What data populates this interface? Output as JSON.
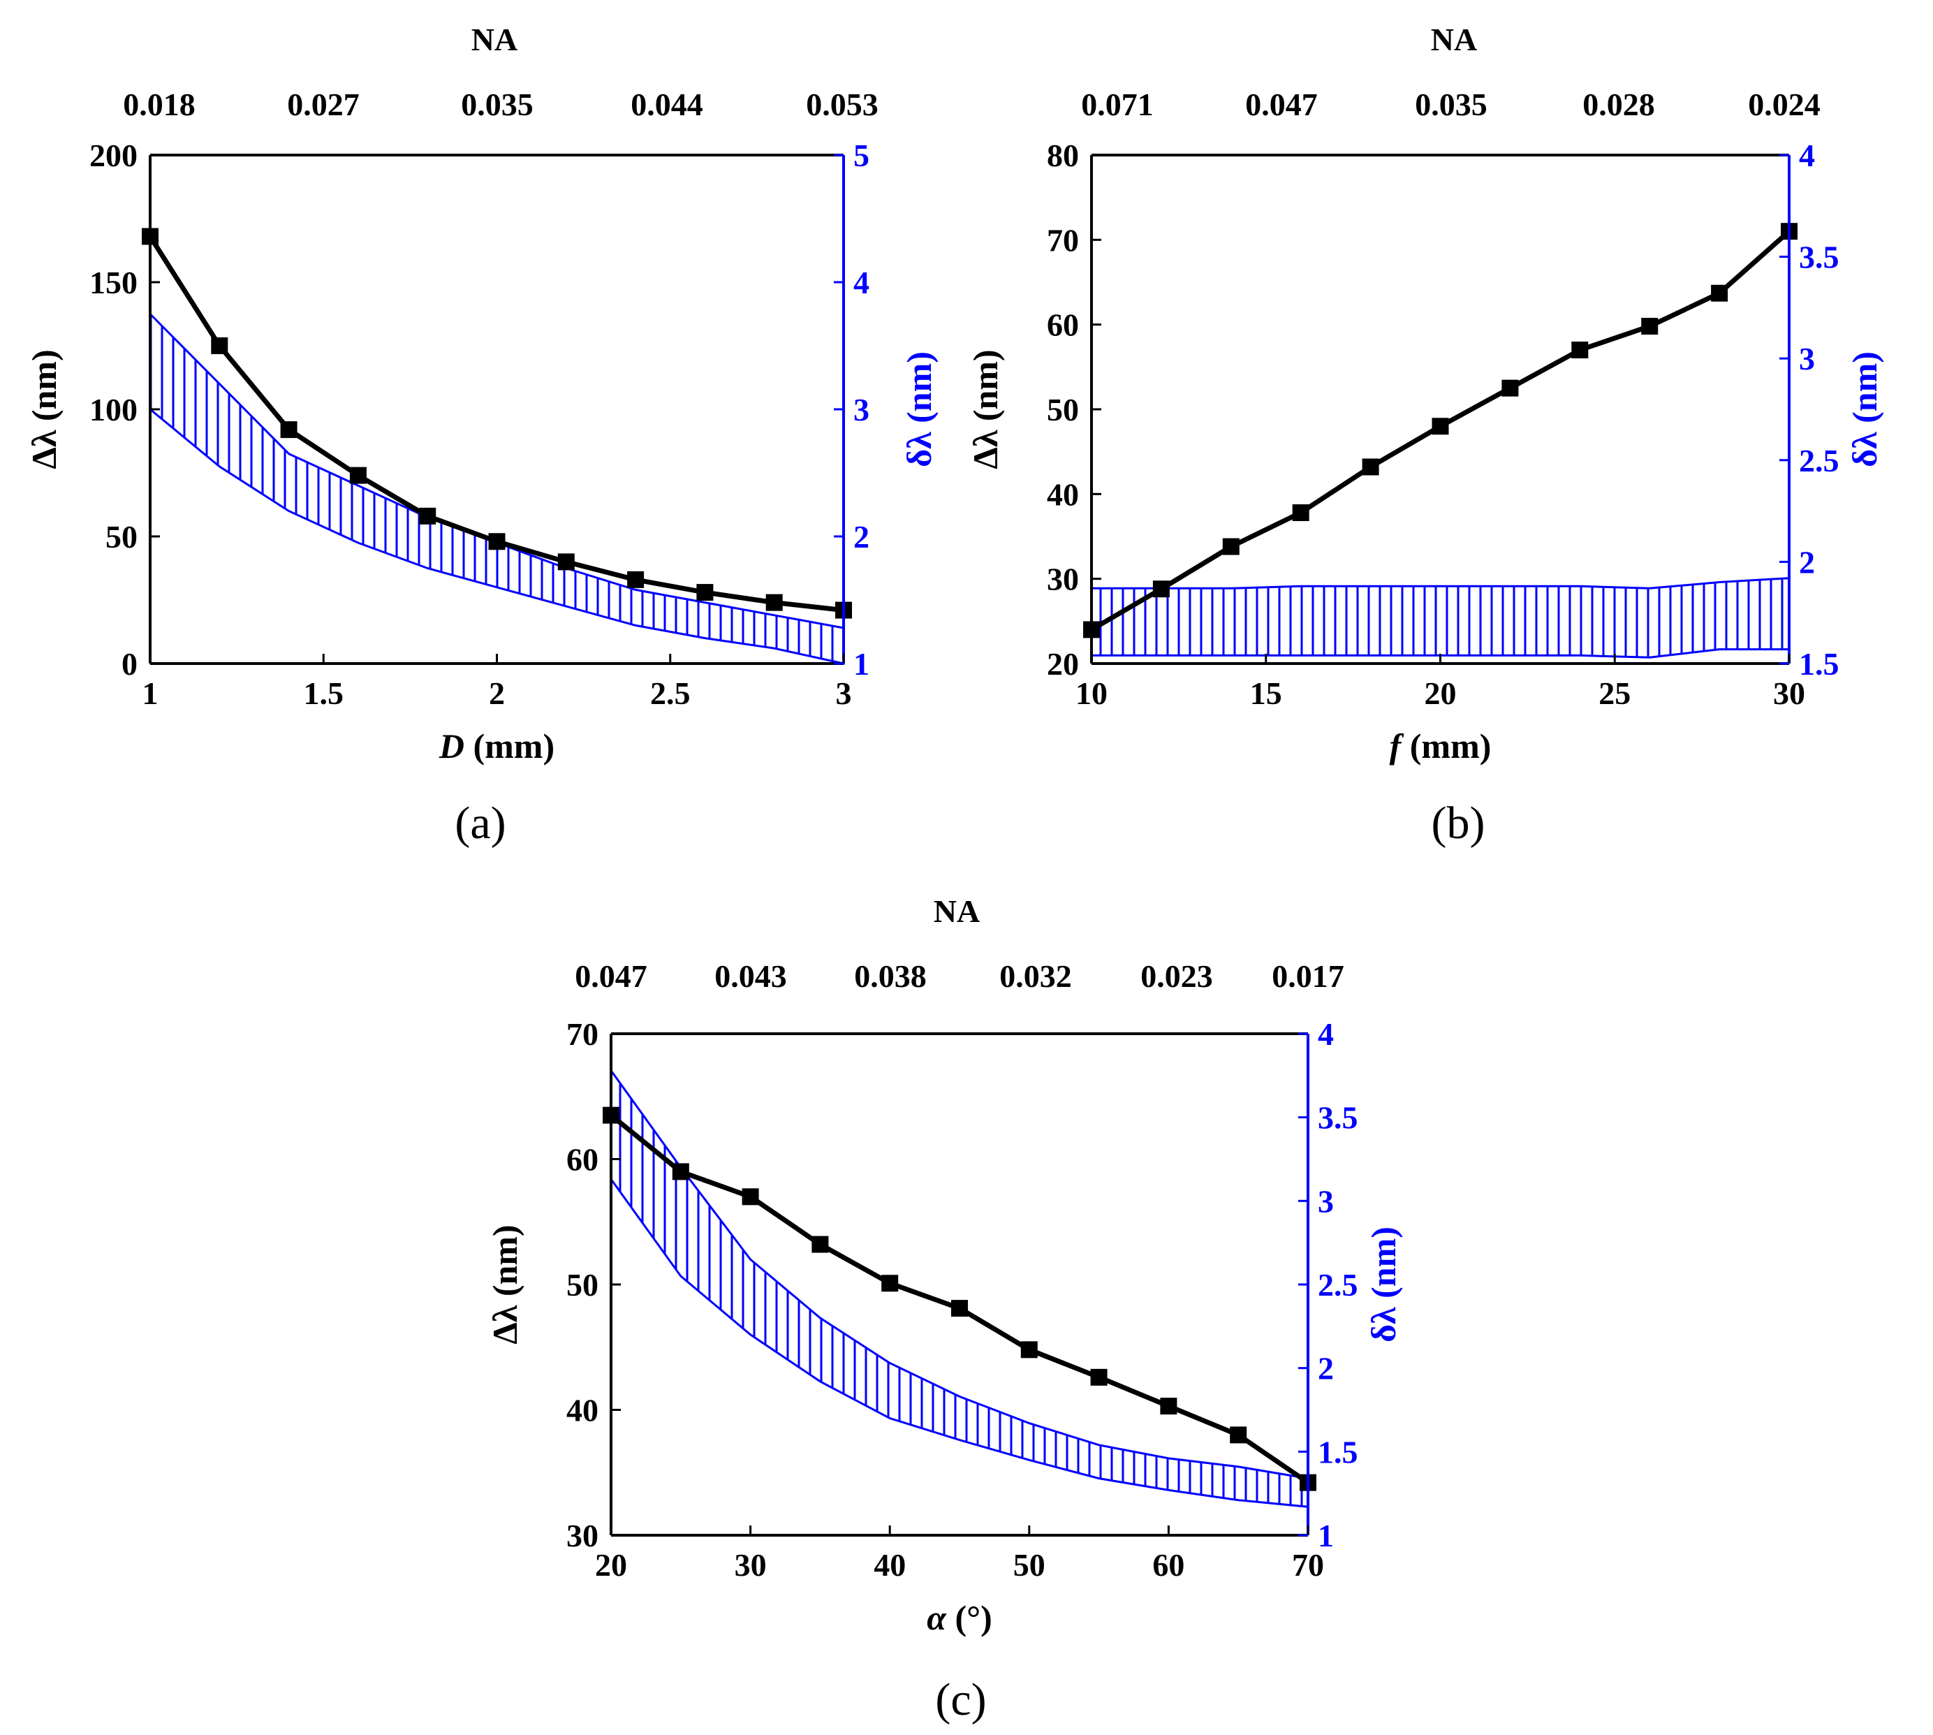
{
  "figure": {
    "panels": [
      "(a)",
      "(b)",
      "(c)"
    ]
  },
  "colors": {
    "primary": "#000000",
    "secondary": "#0000ff"
  },
  "chart_data": [
    {
      "id": "a",
      "type": "line",
      "panel_label": "(a)",
      "xlabel_italic": "D",
      "xlabel_rest": " (mm)",
      "ylabel": "Δλ (nm)",
      "y2label": "δλ (nm)",
      "top_axis_title": "NA",
      "top_ticks": [
        "0.018",
        "0.027",
        "0.035",
        "0.044",
        "0.053"
      ],
      "xlim": [
        1,
        3
      ],
      "ylim": [
        0,
        200
      ],
      "y2lim": [
        1,
        5
      ],
      "xticks": [
        1,
        1.5,
        2,
        2.5,
        3
      ],
      "yticks": [
        0,
        50,
        100,
        150,
        200
      ],
      "y2ticks": [
        1,
        2,
        3,
        4,
        5
      ],
      "series": [
        {
          "name": "Δλ",
          "axis": "left",
          "x": [
            1.0,
            1.2,
            1.4,
            1.6,
            1.8,
            2.0,
            2.2,
            2.4,
            2.6,
            2.8,
            3.0
          ],
          "values": [
            168,
            125,
            92,
            74,
            58,
            48,
            40,
            33,
            28,
            24,
            21
          ]
        }
      ],
      "band": {
        "name": "δλ",
        "axis": "right",
        "x": [
          1.0,
          1.2,
          1.4,
          1.6,
          1.8,
          2.0,
          2.2,
          2.4,
          2.6,
          2.8,
          3.0
        ],
        "upper": [
          3.75,
          3.2,
          2.65,
          2.4,
          2.15,
          1.95,
          1.75,
          1.58,
          1.48,
          1.38,
          1.28
        ],
        "lower": [
          3.0,
          2.55,
          2.2,
          1.95,
          1.75,
          1.6,
          1.45,
          1.3,
          1.2,
          1.12,
          1.0
        ]
      }
    },
    {
      "id": "b",
      "type": "line",
      "panel_label": "(b)",
      "xlabel_italic": "f",
      "xlabel_rest": " (mm)",
      "ylabel": "Δλ (nm)",
      "y2label": "δλ (nm)",
      "top_axis_title": "NA",
      "top_ticks": [
        "0.071",
        "0.047",
        "0.035",
        "0.028",
        "0.024"
      ],
      "xlim": [
        10,
        30
      ],
      "ylim": [
        20,
        80
      ],
      "y2lim": [
        1.5,
        4
      ],
      "xticks": [
        10,
        15,
        20,
        25,
        30
      ],
      "yticks": [
        20,
        30,
        40,
        50,
        60,
        70,
        80
      ],
      "y2ticks": [
        1.5,
        2,
        2.5,
        3,
        3.5,
        4
      ],
      "series": [
        {
          "name": "Δλ",
          "axis": "left",
          "x": [
            10,
            12,
            14,
            16,
            18,
            20,
            22,
            24,
            26,
            28,
            30
          ],
          "values": [
            24,
            28.8,
            33.8,
            37.8,
            43.2,
            48,
            52.5,
            57,
            59.8,
            63.7,
            71
          ]
        }
      ],
      "band": {
        "name": "δλ",
        "axis": "right",
        "x": [
          10,
          12,
          14,
          16,
          18,
          20,
          22,
          24,
          26,
          28,
          30
        ],
        "upper": [
          1.87,
          1.87,
          1.87,
          1.88,
          1.88,
          1.88,
          1.88,
          1.88,
          1.87,
          1.9,
          1.92
        ],
        "lower": [
          1.54,
          1.54,
          1.54,
          1.54,
          1.54,
          1.54,
          1.54,
          1.54,
          1.53,
          1.57,
          1.57
        ]
      }
    },
    {
      "id": "c",
      "type": "line",
      "panel_label": "(c)",
      "xlabel_italic": "α",
      "xlabel_rest": " (°)",
      "ylabel": "Δλ (nm)",
      "y2label": "δλ (nm)",
      "top_axis_title": "NA",
      "top_ticks": [
        "0.047",
        "0.043",
        "0.038",
        "0.032",
        "0.023",
        "0.017"
      ],
      "xlim": [
        20,
        70
      ],
      "ylim": [
        30,
        70
      ],
      "y2lim": [
        1,
        4
      ],
      "xticks": [
        20,
        30,
        40,
        50,
        60,
        70
      ],
      "yticks": [
        30,
        40,
        50,
        60,
        70
      ],
      "y2ticks": [
        1,
        1.5,
        2,
        2.5,
        3,
        3.5,
        4
      ],
      "series": [
        {
          "name": "Δλ",
          "axis": "left",
          "x": [
            20,
            25,
            30,
            35,
            40,
            45,
            50,
            55,
            60,
            65,
            70
          ],
          "values": [
            63.5,
            59,
            57,
            53.2,
            50.1,
            48.1,
            44.8,
            42.6,
            40.3,
            38,
            34.2
          ]
        }
      ],
      "band": {
        "name": "δλ",
        "axis": "right",
        "x": [
          20,
          25,
          30,
          35,
          40,
          45,
          50,
          55,
          60,
          65,
          70
        ],
        "upper": [
          3.78,
          3.2,
          2.65,
          2.3,
          2.03,
          1.83,
          1.67,
          1.54,
          1.46,
          1.41,
          1.34
        ],
        "lower": [
          3.13,
          2.55,
          2.2,
          1.92,
          1.7,
          1.57,
          1.45,
          1.34,
          1.27,
          1.21,
          1.17
        ]
      }
    }
  ]
}
